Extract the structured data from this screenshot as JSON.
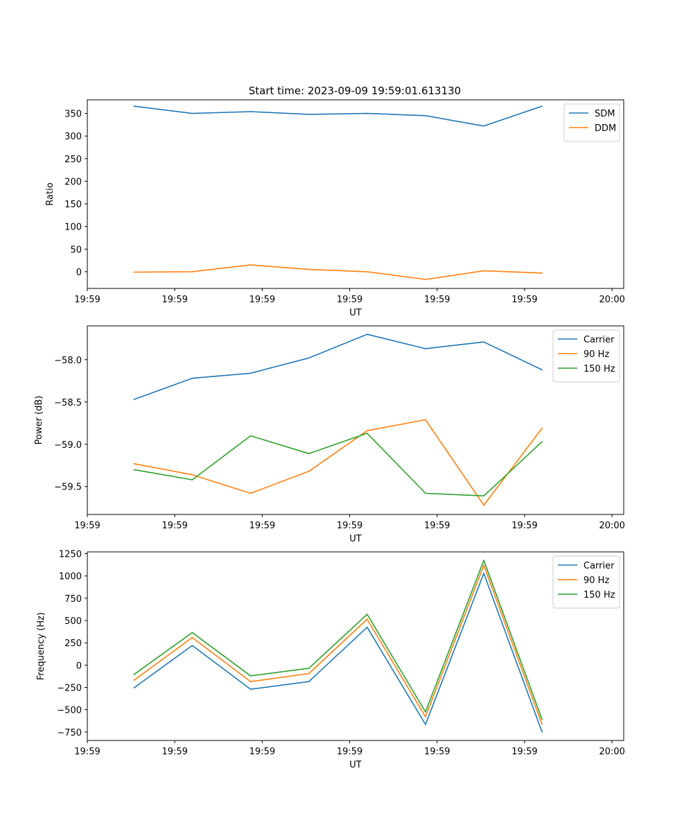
{
  "figure_title": "Start time: 2023-09-09 19:59:01.613130",
  "colors": {
    "blue": "#1f77b4",
    "orange": "#ff7f0e",
    "green": "#2ca02c",
    "axis": "#000000",
    "legend_border": "#cccccc"
  },
  "chart_data": [
    {
      "type": "line",
      "title": "Start time: 2023-09-09 19:59:01.613130",
      "xlabel": "UT",
      "ylabel": "Ratio",
      "x": [
        1,
        2,
        3,
        4,
        5,
        6,
        7,
        8
      ],
      "xlim": [
        0.2,
        9.4
      ],
      "xticks": [
        0.2,
        1.7,
        3.2,
        4.7,
        6.2,
        7.7,
        9.2
      ],
      "xtick_labels": [
        "19:59",
        "19:59",
        "19:59",
        "19:59",
        "19:59",
        "19:59",
        "20:00"
      ],
      "ylim": [
        -37,
        380
      ],
      "yticks": [
        0,
        50,
        100,
        150,
        200,
        250,
        300,
        350
      ],
      "ytick_labels": [
        "0",
        "50",
        "100",
        "150",
        "200",
        "250",
        "300",
        "350"
      ],
      "legend_position": "top-right",
      "series": [
        {
          "name": "SDM",
          "color": "#1f77b4",
          "values": [
            366,
            350,
            354,
            348,
            350,
            345,
            322,
            366
          ]
        },
        {
          "name": "DDM",
          "color": "#ff7f0e",
          "values": [
            -1,
            0,
            15,
            5,
            0,
            -17,
            2,
            -3
          ]
        }
      ]
    },
    {
      "type": "line",
      "title": "",
      "xlabel": "UT",
      "ylabel": "Power (dB)",
      "x": [
        1,
        2,
        3,
        4,
        5,
        6,
        7,
        8
      ],
      "xlim": [
        0.2,
        9.4
      ],
      "xticks": [
        0.2,
        1.7,
        3.2,
        4.7,
        6.2,
        7.7,
        9.2
      ],
      "xtick_labels": [
        "19:59",
        "19:59",
        "19:59",
        "19:59",
        "19:59",
        "19:59",
        "20:00"
      ],
      "ylim": [
        -59.83,
        -57.6
      ],
      "yticks": [
        -59.5,
        -59.0,
        -58.5,
        -58.0
      ],
      "ytick_labels": [
        "−59.5",
        "−59.0",
        "−58.5",
        "−58.0"
      ],
      "legend_position": "top-right",
      "series": [
        {
          "name": "Carrier",
          "color": "#1f77b4",
          "values": [
            -58.47,
            -58.22,
            -58.16,
            -57.98,
            -57.7,
            -57.87,
            -57.79,
            -58.12
          ]
        },
        {
          "name": "90 Hz",
          "color": "#ff7f0e",
          "values": [
            -59.23,
            -59.36,
            -59.58,
            -59.32,
            -58.84,
            -58.71,
            -59.72,
            -58.81
          ]
        },
        {
          "name": "150 Hz",
          "color": "#2ca02c",
          "values": [
            -59.3,
            -59.42,
            -58.9,
            -59.11,
            -58.87,
            -59.58,
            -59.61,
            -58.97
          ]
        }
      ]
    },
    {
      "type": "line",
      "title": "",
      "xlabel": "UT",
      "ylabel": "Frequency (Hz)",
      "x": [
        1,
        2,
        3,
        4,
        5,
        6,
        7,
        8
      ],
      "xlim": [
        0.2,
        9.4
      ],
      "xticks": [
        0.2,
        1.7,
        3.2,
        4.7,
        6.2,
        7.7,
        9.2
      ],
      "xtick_labels": [
        "19:59",
        "19:59",
        "19:59",
        "19:59",
        "19:59",
        "19:59",
        "20:00"
      ],
      "ylim": [
        -845,
        1270
      ],
      "yticks": [
        -750,
        -500,
        -250,
        0,
        250,
        500,
        750,
        1000,
        1250
      ],
      "ytick_labels": [
        "−750",
        "−500",
        "−250",
        "0",
        "250",
        "500",
        "750",
        "1000",
        "1250"
      ],
      "legend_position": "top-right",
      "series": [
        {
          "name": "Carrier",
          "color": "#1f77b4",
          "values": [
            -255,
            220,
            -270,
            -185,
            425,
            -665,
            1030,
            -750
          ]
        },
        {
          "name": "90 Hz",
          "color": "#ff7f0e",
          "values": [
            -170,
            310,
            -185,
            -95,
            515,
            -580,
            1120,
            -665
          ]
        },
        {
          "name": "150 Hz",
          "color": "#2ca02c",
          "values": [
            -105,
            365,
            -120,
            -35,
            570,
            -525,
            1175,
            -610
          ]
        }
      ]
    }
  ]
}
